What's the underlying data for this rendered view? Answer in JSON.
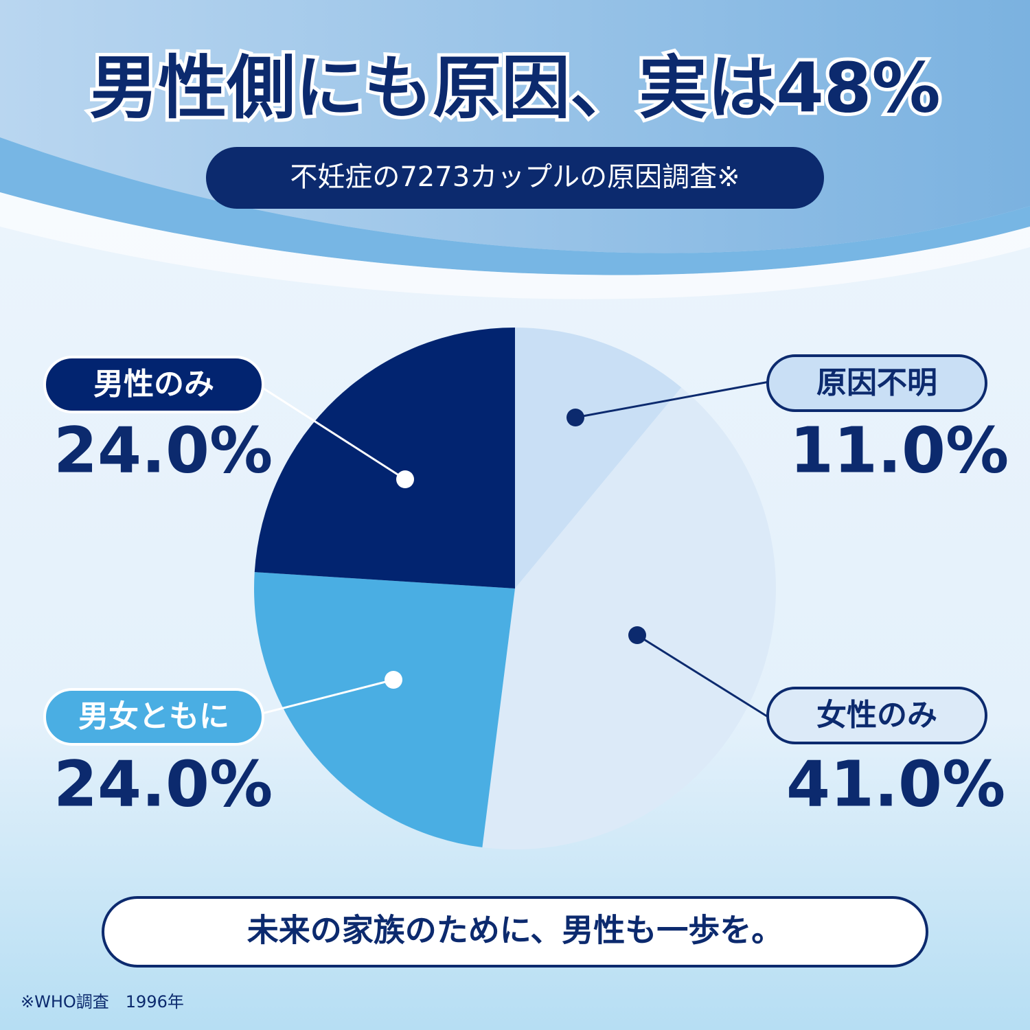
{
  "chart_data": {
    "type": "pie",
    "title": "男性側にも原因、実は48%",
    "subtitle": "不妊症の7273カップルの原因調査※",
    "categories": [
      "原因不明",
      "女性のみ",
      "男女ともに",
      "男性のみ"
    ],
    "values": [
      11.0,
      41.0,
      24.0,
      24.0
    ],
    "value_labels": [
      "11.0%",
      "41.0%",
      "24.0%",
      "24.0%"
    ],
    "colors": [
      "#c9dff5",
      "#dceaf8",
      "#4aaee3",
      "#022470"
    ],
    "annotation": "未来の家族のために、男性も一歩を。",
    "footnote": "※WHO調査　1996年"
  }
}
